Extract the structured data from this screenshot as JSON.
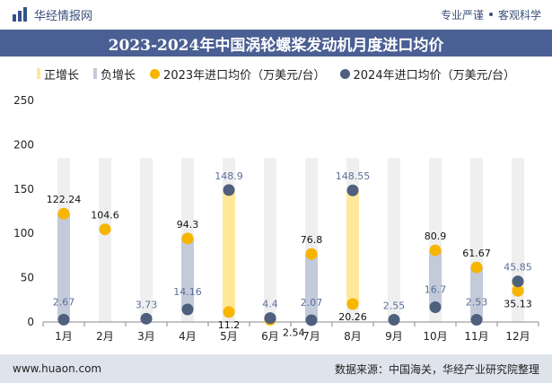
{
  "header": {
    "brand_name": "华经情报网",
    "slogan_left": "专业严谨",
    "slogan_right": "客观科学"
  },
  "footer": {
    "website": "www.huaon.com",
    "source": "数据来源：中国海关，华经产业研究院整理"
  },
  "colors": {
    "positive_bar": "#ffe89a",
    "negative_bar": "#c3cad9",
    "series_2023": "#f7b500",
    "series_2024": "#4f5f7e",
    "title_band": "#4a5f93"
  },
  "chart_data": {
    "type": "line",
    "title": "2023-2024年中国涡轮螺桨发动机月度进口均价",
    "categories": [
      "1月",
      "2月",
      "3月",
      "4月",
      "5月",
      "6月",
      "7月",
      "8月",
      "9月",
      "10月",
      "11月",
      "12月"
    ],
    "series": [
      {
        "name": "2023年进口均价（万美元/台）",
        "values": [
          122.24,
          104.6,
          null,
          94.3,
          11.2,
          2.54,
          76.8,
          20.26,
          null,
          80.9,
          61.67,
          35.13
        ]
      },
      {
        "name": "2024年进口均价（万美元/台）",
        "values": [
          2.67,
          null,
          3.73,
          14.16,
          148.9,
          4.4,
          2.07,
          148.55,
          2.55,
          16.7,
          2.53,
          45.85
        ]
      }
    ],
    "bar_legend": {
      "positive": "正增长",
      "negative": "负增长"
    },
    "growth": [
      "negative",
      null,
      null,
      "negative",
      "positive",
      "negative",
      "negative",
      "positive",
      null,
      "negative",
      "negative",
      "positive"
    ],
    "labels_2023": [
      "122.24",
      "104.6",
      "",
      "94.3",
      "11.2",
      "2.54",
      "76.8",
      "20.26",
      "",
      "80.9",
      "61.67",
      "35.13"
    ],
    "labels_2024": [
      "2.67",
      "",
      "3.73",
      "14.16",
      "148.9",
      "4.4",
      "2.07",
      "148.55",
      "2.55",
      "16.7",
      "2.53",
      "45.85"
    ],
    "ylim": [
      0,
      250
    ],
    "yticks": [
      "0",
      "50",
      "100",
      "150",
      "200",
      "250"
    ],
    "legend_position": "top-center",
    "grid": false
  }
}
